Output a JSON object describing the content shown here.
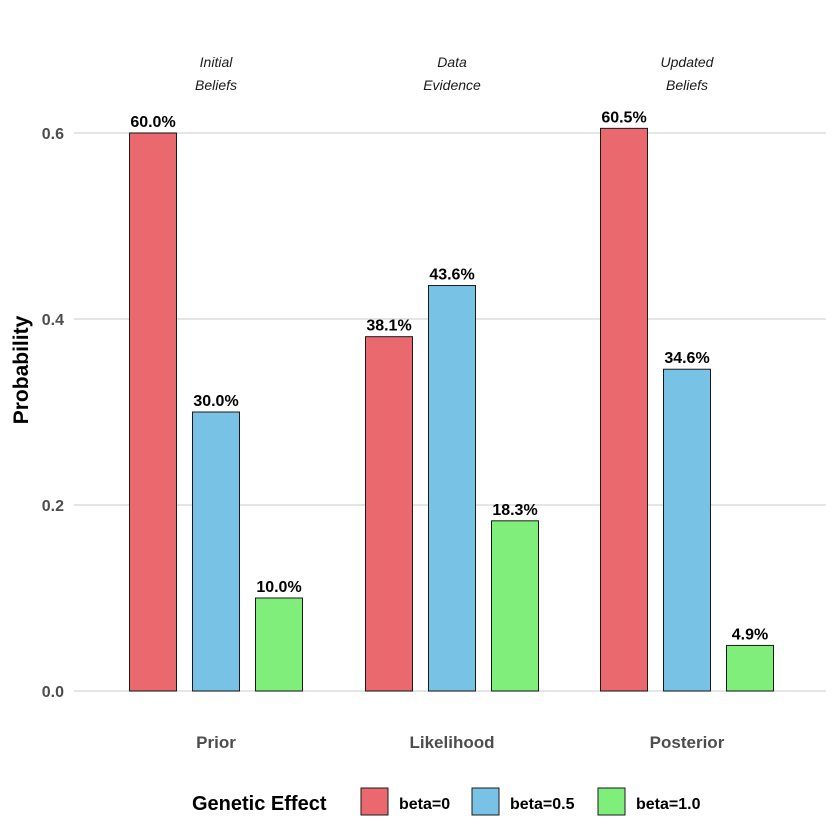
{
  "chart_data": {
    "type": "bar",
    "categories": [
      "Prior",
      "Likelihood",
      "Posterior"
    ],
    "annotations": [
      "Initial\nBeliefs",
      "Data\nEvidence",
      "Updated\nBeliefs"
    ],
    "series": [
      {
        "name": "beta=0",
        "color": "#E9696E",
        "values": [
          0.6,
          0.381,
          0.605
        ],
        "labels": [
          "60.0%",
          "38.1%",
          "60.5%"
        ]
      },
      {
        "name": "beta=0.5",
        "color": "#78C3E5",
        "values": [
          0.3,
          0.436,
          0.346
        ],
        "labels": [
          "30.0%",
          "43.6%",
          "34.6%"
        ]
      },
      {
        "name": "beta=1.0",
        "color": "#80EE7B",
        "values": [
          0.1,
          0.183,
          0.049
        ],
        "labels": [
          "10.0%",
          "18.3%",
          "4.9%"
        ]
      }
    ],
    "xlabel": "",
    "ylabel": "Probability",
    "ylim": [
      0,
      0.6
    ],
    "yticks": [
      0.0,
      0.2,
      0.4,
      0.6
    ],
    "ytick_labels": [
      "0.0",
      "0.2",
      "0.4",
      "0.6"
    ],
    "grid": true,
    "legend": {
      "title": "Genetic Effect",
      "position": "bottom"
    }
  }
}
